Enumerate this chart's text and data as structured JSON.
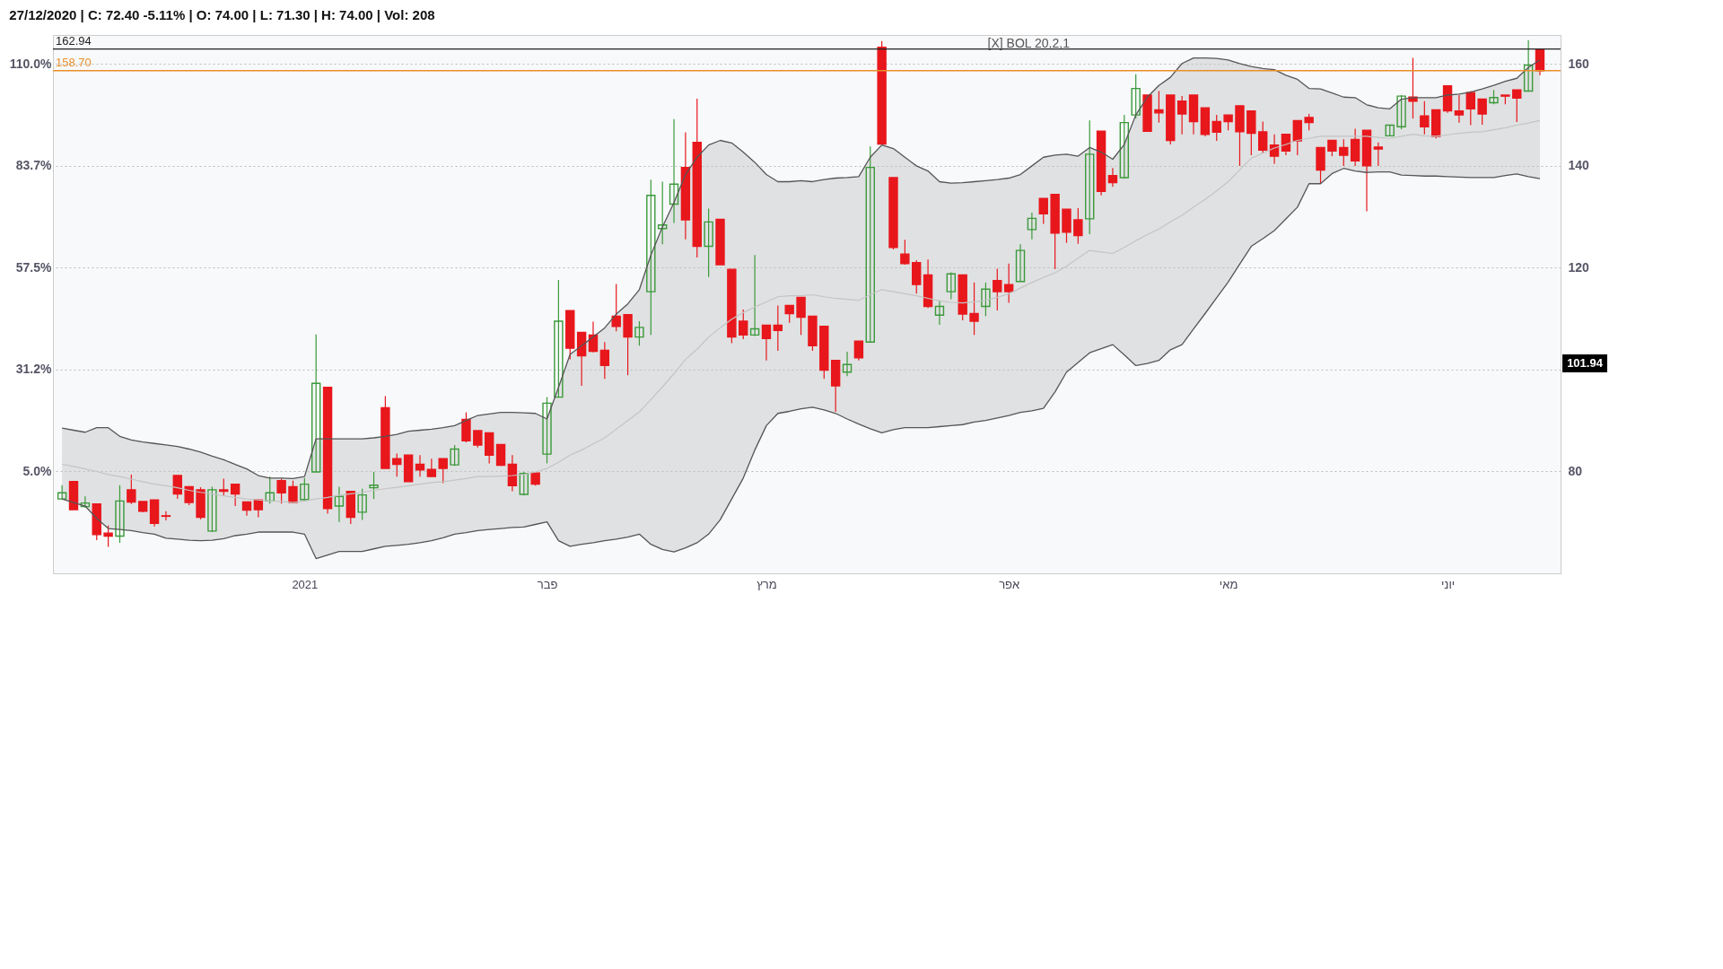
{
  "chart_data": {
    "type": "candlestick",
    "subtitle": "27/12/2020 | C: 72.40 -5.11% | O: 74.00 | L: 71.30 | H: 74.00 | Vol: 208",
    "categories": [
      null,
      null,
      null,
      null,
      null,
      null,
      null,
      null,
      null,
      null,
      null,
      null,
      null,
      null,
      null,
      null,
      null,
      null,
      null,
      null,
      null,
      "2021",
      null,
      null,
      null,
      null,
      null,
      null,
      null,
      null,
      null,
      null,
      null,
      null,
      null,
      null,
      null,
      null,
      null,
      null,
      null,
      null,
      "פבר",
      null,
      null,
      null,
      null,
      null,
      null,
      null,
      null,
      null,
      null,
      null,
      null,
      null,
      null,
      null,
      null,
      null,
      null,
      "מרץ",
      null,
      null,
      null,
      null,
      null,
      null,
      null,
      null,
      null,
      null,
      null,
      null,
      null,
      null,
      null,
      null,
      null,
      null,
      null,
      null,
      "אפר",
      null,
      null,
      null,
      null,
      null,
      null,
      null,
      null,
      null,
      null,
      null,
      null,
      null,
      null,
      null,
      null,
      null,
      null,
      "מאי",
      null,
      null,
      null,
      null,
      null,
      null,
      null,
      null,
      null,
      null,
      null,
      null,
      null,
      null,
      null,
      null,
      null,
      null,
      "יוני",
      null,
      null,
      null,
      null,
      null,
      null,
      null,
      null
    ],
    "ylim": [
      60,
      165.7
    ],
    "yticks": [
      80,
      {
        "value": 100,
        "label": null
      },
      120,
      140,
      160
    ],
    "y2lim": [
      -21.25,
      117.48
    ],
    "y2ticks": [
      {
        "value": 5,
        "label": "5.0%"
      },
      {
        "value": 31.25,
        "label": "31.2%"
      },
      {
        "value": 57.5,
        "label": "57.5%"
      },
      {
        "value": 83.75,
        "label": "83.7%"
      },
      {
        "value": 110,
        "label": "110.0%"
      }
    ],
    "grid": "y",
    "legend": "top",
    "series": [
      {
        "ohlc": [
          [
            74.6,
            77.3,
            74.6,
            75.8
          ],
          [
            78.0,
            78.0,
            72.5,
            72.5
          ],
          [
            73.1,
            75.1,
            72.9,
            73.8
          ],
          [
            73.6,
            73.6,
            66.5,
            67.6
          ],
          [
            67.9,
            69.4,
            65.2,
            67.3
          ],
          [
            67.3,
            77.3,
            66.0,
            74.2
          ],
          [
            76.4,
            79.4,
            73.6,
            74.0
          ],
          [
            74.1,
            74.1,
            72.0,
            72.2
          ],
          [
            74.4,
            74.4,
            69.2,
            69.8
          ],
          [
            71.3,
            72.2,
            70.4,
            71.2
          ],
          [
            79.2,
            79.2,
            74.6,
            75.6
          ],
          [
            77.0,
            77.0,
            73.4,
            73.9
          ],
          [
            76.4,
            76.9,
            70.6,
            71.0
          ],
          [
            68.3,
            77.0,
            68.1,
            76.4
          ],
          [
            76.4,
            78.6,
            75.3,
            76.1
          ],
          [
            77.5,
            77.5,
            73.2,
            75.6
          ],
          [
            74.0,
            74.0,
            71.3,
            72.4
          ],
          [
            74.4,
            74.4,
            71.0,
            72.5
          ],
          [
            74.2,
            79.0,
            73.7,
            75.8
          ],
          [
            78.2,
            78.6,
            73.7,
            75.8
          ],
          [
            77.0,
            78.2,
            73.7,
            73.9
          ],
          [
            74.5,
            78.7,
            74.3,
            77.5
          ],
          [
            79.9,
            106.9,
            79.9,
            97.3
          ],
          [
            96.5,
            96.5,
            71.7,
            72.7
          ],
          [
            73.2,
            77.0,
            70.1,
            75.1
          ],
          [
            76.1,
            76.1,
            69.7,
            71.0
          ],
          [
            72.0,
            76.6,
            70.5,
            75.4
          ],
          [
            76.8,
            79.9,
            74.6,
            77.3
          ],
          [
            92.5,
            94.8,
            80.6,
            80.6
          ],
          [
            82.5,
            83.5,
            79.0,
            81.4
          ],
          [
            83.2,
            83.2,
            78.0,
            78.0
          ],
          [
            81.4,
            83.2,
            79.0,
            80.3
          ],
          [
            80.4,
            82.5,
            79.0,
            79.0
          ],
          [
            82.5,
            82.5,
            77.7,
            80.6
          ],
          [
            81.3,
            85.2,
            81.1,
            84.4
          ],
          [
            90.2,
            91.6,
            85.7,
            86.0
          ],
          [
            88.0,
            88.0,
            84.7,
            85.2
          ],
          [
            87.6,
            87.6,
            81.6,
            83.2
          ],
          [
            85.3,
            85.3,
            81.1,
            81.2
          ],
          [
            81.4,
            83.2,
            76.1,
            77.2
          ],
          [
            75.5,
            79.9,
            75.3,
            79.6
          ],
          [
            79.7,
            79.7,
            77.2,
            77.5
          ],
          [
            83.4,
            94.6,
            81.6,
            93.4
          ],
          [
            94.6,
            117.6,
            94.6,
            109.5
          ],
          [
            111.6,
            111.6,
            102.0,
            104.2
          ],
          [
            107.3,
            107.3,
            96.8,
            102.7
          ],
          [
            106.8,
            109.4,
            103.4,
            103.6
          ],
          [
            103.8,
            105.4,
            98.2,
            100.8
          ],
          [
            110.5,
            116.8,
            107.5,
            108.5
          ],
          [
            110.8,
            110.8,
            98.9,
            106.4
          ],
          [
            106.4,
            109.5,
            104.7,
            108.3
          ],
          [
            115.3,
            137.3,
            106.8,
            134.2
          ],
          [
            127.7,
            136.9,
            124.6,
            128.4
          ],
          [
            132.5,
            149.2,
            128.8,
            136.4
          ],
          [
            139.7,
            146.6,
            125.6,
            129.4
          ],
          [
            144.6,
            153.2,
            122.0,
            124.2
          ],
          [
            124.2,
            131.6,
            118.2,
            129.0
          ],
          [
            129.5,
            129.5,
            120.6,
            120.6
          ],
          [
            119.7,
            119.7,
            105.2,
            106.4
          ],
          [
            109.5,
            111.8,
            106.0,
            106.8
          ],
          [
            106.8,
            122.5,
            106.6,
            108.0
          ],
          [
            108.7,
            108.7,
            101.8,
            106.1
          ],
          [
            108.7,
            112.6,
            103.7,
            107.7
          ],
          [
            112.6,
            112.6,
            109.2,
            111.0
          ],
          [
            114.2,
            114.2,
            106.8,
            110.3
          ],
          [
            110.5,
            110.5,
            103.7,
            104.7
          ],
          [
            108.5,
            108.5,
            98.2,
            99.9
          ],
          [
            101.8,
            101.8,
            91.7,
            96.8
          ],
          [
            99.5,
            103.5,
            98.7,
            101.0
          ],
          [
            105.6,
            105.6,
            101.8,
            102.3
          ],
          [
            105.4,
            143.8,
            105.4,
            139.7
          ],
          [
            163.3,
            164.5,
            144.3,
            144.3
          ],
          [
            137.7,
            137.7,
            123.6,
            124.0
          ],
          [
            122.7,
            125.5,
            120.6,
            120.8
          ],
          [
            121.0,
            121.5,
            114.9,
            116.7
          ],
          [
            118.6,
            121.6,
            112.1,
            112.4
          ],
          [
            110.7,
            113.6,
            108.8,
            112.4
          ],
          [
            115.3,
            119.1,
            113.8,
            118.8
          ],
          [
            118.6,
            118.6,
            109.7,
            110.9
          ],
          [
            111.0,
            117.1,
            106.8,
            109.5
          ],
          [
            112.4,
            117.1,
            110.5,
            115.8
          ],
          [
            117.5,
            119.8,
            111.6,
            115.3
          ],
          [
            116.7,
            120.8,
            113.1,
            115.3
          ],
          [
            117.3,
            124.6,
            117.3,
            123.4
          ],
          [
            127.5,
            130.8,
            125.6,
            129.7
          ],
          [
            133.6,
            133.6,
            128.6,
            130.6
          ],
          [
            134.4,
            134.4,
            119.7,
            126.8
          ],
          [
            131.5,
            131.5,
            124.9,
            127.0
          ],
          [
            129.4,
            131.7,
            124.7,
            126.3
          ],
          [
            129.6,
            148.9,
            126.6,
            142.3
          ],
          [
            146.8,
            146.8,
            134.2,
            135.0
          ],
          [
            138.1,
            139.6,
            135.9,
            136.7
          ],
          [
            137.7,
            150.0,
            137.5,
            148.5
          ],
          [
            150.0,
            158.0,
            149.3,
            155.2
          ],
          [
            153.9,
            153.9,
            146.8,
            146.8
          ],
          [
            151.0,
            154.7,
            148.5,
            150.4
          ],
          [
            153.9,
            153.9,
            144.2,
            145.0
          ],
          [
            152.7,
            153.7,
            146.2,
            150.2
          ],
          [
            153.9,
            153.9,
            146.2,
            148.7
          ],
          [
            151.4,
            151.4,
            145.8,
            146.2
          ],
          [
            148.7,
            150.0,
            144.9,
            146.6
          ],
          [
            150.0,
            150.0,
            147.0,
            148.7
          ],
          [
            151.8,
            151.8,
            140.0,
            146.7
          ],
          [
            150.8,
            150.8,
            142.1,
            146.4
          ],
          [
            146.7,
            148.7,
            142.5,
            143.1
          ],
          [
            144.1,
            146.2,
            140.4,
            141.9
          ],
          [
            146.2,
            146.2,
            142.1,
            142.9
          ],
          [
            148.9,
            148.9,
            142.1,
            144.9
          ],
          [
            149.5,
            150.2,
            147.0,
            148.5
          ],
          [
            143.6,
            143.6,
            136.5,
            139.2
          ],
          [
            145.0,
            145.0,
            141.9,
            142.9
          ],
          [
            143.6,
            145.2,
            140.0,
            142.1
          ],
          [
            145.2,
            147.3,
            140.0,
            141.0
          ],
          [
            147.0,
            147.0,
            131.1,
            140.0
          ],
          [
            143.7,
            144.6,
            140.0,
            143.3
          ],
          [
            145.9,
            148.1,
            145.8,
            148.0
          ],
          [
            147.7,
            153.9,
            147.2,
            153.7
          ],
          [
            153.5,
            161.2,
            149.3,
            152.7
          ],
          [
            149.8,
            152.7,
            146.2,
            147.7
          ],
          [
            151.0,
            151.0,
            145.4,
            145.8
          ],
          [
            155.7,
            155.7,
            150.4,
            150.8
          ],
          [
            150.8,
            153.9,
            148.5,
            150.0
          ],
          [
            154.4,
            154.7,
            148.0,
            151.2
          ],
          [
            153.1,
            153.1,
            148.1,
            150.2
          ],
          [
            152.4,
            154.9,
            152.1,
            153.4
          ],
          [
            153.9,
            153.9,
            152.1,
            153.7
          ],
          [
            154.9,
            154.9,
            148.6,
            153.3
          ],
          [
            154.7,
            164.7,
            154.7,
            159.8
          ],
          [
            162.94,
            162.94,
            157.8,
            158.7
          ]
        ],
        "colors": [
          "#3a9a3a",
          "#e8171c",
          "#3a9a3a",
          "#e8171c",
          "#e8171c",
          "#3a9a3a",
          "#e8171c",
          "#e8171c",
          "#e8171c",
          "#e8171c",
          "#e8171c",
          "#e8171c",
          "#e8171c",
          "#3a9a3a",
          "#e8171c",
          "#e8171c",
          "#e8171c",
          "#e8171c",
          "#3a9a3a",
          "#e8171c",
          "#e8171c",
          "#3a9a3a",
          "#3a9a3a",
          "#e8171c",
          "#3a9a3a",
          "#e8171c",
          "#3a9a3a",
          "#3a9a3a",
          "#e8171c",
          "#e8171c",
          "#e8171c",
          "#e8171c",
          "#e8171c",
          "#e8171c",
          "#3a9a3a",
          "#e8171c",
          "#e8171c",
          "#e8171c",
          "#e8171c",
          "#e8171c",
          "#3a9a3a",
          "#e8171c",
          "#3a9a3a",
          "#3a9a3a",
          "#e8171c",
          "#e8171c",
          "#e8171c",
          "#e8171c",
          "#e8171c",
          "#e8171c",
          "#3a9a3a",
          "#3a9a3a",
          "#3a9a3a",
          "#3a9a3a",
          "#e8171c",
          "#e8171c",
          "#3a9a3a",
          "#e8171c",
          "#e8171c",
          "#e8171c",
          "#3a9a3a",
          "#e8171c",
          "#e8171c",
          "#e8171c",
          "#e8171c",
          "#e8171c",
          "#e8171c",
          "#e8171c",
          "#3a9a3a",
          "#e8171c",
          "#3a9a3a",
          "#e8171c",
          "#e8171c",
          "#e8171c",
          "#e8171c",
          "#e8171c",
          "#3a9a3a",
          "#3a9a3a",
          "#e8171c",
          "#e8171c",
          "#3a9a3a",
          "#e8171c",
          "#e8171c",
          "#3a9a3a",
          "#3a9a3a",
          "#e8171c",
          "#e8171c",
          "#e8171c",
          "#e8171c",
          "#3a9a3a",
          "#e8171c",
          "#e8171c",
          "#3a9a3a",
          "#3a9a3a",
          "#e8171c",
          "#e8171c",
          "#e8171c",
          "#e8171c",
          "#e8171c",
          "#e8171c",
          "#e8171c",
          "#e8171c",
          "#e8171c",
          "#e8171c",
          "#e8171c",
          "#e8171c",
          "#e8171c",
          "#e8171c",
          "#e8171c",
          "#e8171c",
          "#e8171c",
          "#e8171c",
          "#e8171c",
          "#e8171c",
          "#e8171c",
          "#3a9a3a",
          "#3a9a3a",
          "#e8171c",
          "#e8171c",
          "#e8171c",
          "#e8171c",
          "#e8171c",
          "#e8171c",
          "#e8171c",
          "#3a9a3a",
          "#e8171c",
          "#e8171c",
          "#3a9a3a",
          "#e8171c"
        ]
      },
      {
        "type": "line",
        "name": "[X] BOL 20,2,1",
        "color": "#555555",
        "values": [
          88.5,
          88.1,
          87.7,
          88.6,
          88.6,
          86.9,
          86.2,
          85.8,
          85.5,
          85.2,
          84.9,
          84.4,
          83.8,
          83.0,
          82.3,
          81.4,
          80.5,
          79.2,
          78.7,
          78.7,
          78.6,
          79.0,
          86.4,
          86.4,
          86.4,
          86.4,
          86.4,
          86.6,
          86.9,
          87.3,
          87.9,
          88.1,
          88.3,
          88.6,
          89.0,
          90.0,
          91.0,
          91.3,
          91.6,
          91.6,
          91.5,
          91.4,
          90.3,
          96.5,
          103.0,
          104.7,
          106.4,
          108.2,
          110.9,
          112.9,
          115.7,
          122.5,
          128.0,
          132.8,
          138.3,
          141.7,
          144.1,
          145.0,
          144.5,
          142.7,
          140.7,
          138.3,
          136.9,
          136.9,
          137.1,
          136.9,
          137.3,
          137.6,
          137.7,
          137.9,
          141.7,
          144.1,
          143.4,
          141.7,
          140.0,
          139.0,
          136.9,
          136.6,
          136.7,
          136.9,
          137.1,
          137.3,
          137.6,
          138.3,
          140.0,
          141.7,
          142.1,
          142.3,
          141.9,
          143.6,
          142.7,
          141.3,
          144.2,
          150.0,
          153.5,
          155.8,
          157.4,
          160.1,
          161.2,
          161.2,
          161.1,
          160.8,
          160.1,
          159.5,
          159.1,
          158.9,
          157.8,
          157.0,
          155.2,
          155.1,
          154.3,
          153.5,
          153.4,
          152.0,
          151.4,
          151.2,
          153.1,
          153.4,
          153.4,
          153.4,
          153.9,
          154.1,
          154.5,
          155.1,
          155.8,
          156.6,
          157.2,
          159.3,
          160.8
        ]
      },
      {
        "type": "line",
        "color": "#555555",
        "values": [
          74.6,
          73.9,
          73.2,
          70.8,
          68.8,
          68.6,
          68.4,
          68.0,
          67.7,
          66.9,
          66.7,
          66.5,
          66.4,
          66.5,
          66.8,
          67.4,
          67.7,
          68.1,
          68.1,
          68.1,
          68.1,
          67.7,
          62.9,
          63.6,
          64.3,
          64.3,
          64.3,
          64.8,
          65.3,
          65.5,
          65.7,
          66.0,
          66.4,
          67.0,
          67.7,
          68.0,
          68.4,
          68.6,
          68.8,
          69.0,
          69.1,
          69.6,
          70.1,
          66.4,
          65.3,
          65.7,
          66.0,
          66.4,
          66.7,
          67.1,
          67.7,
          65.7,
          64.7,
          64.2,
          65.0,
          66.0,
          67.7,
          70.5,
          74.6,
          78.7,
          84.2,
          89.0,
          91.4,
          91.8,
          92.3,
          92.6,
          92.1,
          91.4,
          90.3,
          89.3,
          88.4,
          87.6,
          88.2,
          88.6,
          88.6,
          88.6,
          88.8,
          89.0,
          89.2,
          89.7,
          90.0,
          90.5,
          91.0,
          91.6,
          91.9,
          92.4,
          95.6,
          99.5,
          101.4,
          103.3,
          104.1,
          104.9,
          102.9,
          100.8,
          101.2,
          101.8,
          103.9,
          104.9,
          108.0,
          111.0,
          114.1,
          117.2,
          120.7,
          124.2,
          125.7,
          127.3,
          129.6,
          131.9,
          136.5,
          136.5,
          138.5,
          139.5,
          139.0,
          138.7,
          138.8,
          138.8,
          138.2,
          138.1,
          138.0,
          138.0,
          137.9,
          137.8,
          137.7,
          137.7,
          137.7,
          138.1,
          138.4,
          137.9,
          137.5
        ]
      },
      {
        "type": "line",
        "color": "#c4c4c4",
        "values": [
          81.4,
          81.0,
          80.5,
          80.0,
          79.4,
          79.0,
          78.5,
          78.0,
          77.5,
          77.2,
          76.8,
          76.3,
          75.9,
          75.6,
          75.2,
          74.9,
          74.6,
          74.4,
          74.2,
          74.1,
          73.9,
          74.2,
          74.6,
          74.9,
          75.3,
          75.6,
          75.9,
          76.3,
          76.6,
          76.9,
          77.2,
          77.5,
          77.8,
          78.0,
          78.3,
          78.6,
          79.0,
          79.0,
          79.1,
          79.2,
          79.4,
          79.9,
          80.6,
          81.8,
          83.2,
          84.2,
          85.4,
          86.6,
          88.3,
          90.0,
          91.7,
          94.1,
          96.6,
          99.2,
          102.0,
          104.0,
          106.4,
          108.2,
          109.9,
          111.2,
          112.3,
          113.3,
          114.3,
          114.5,
          114.5,
          114.7,
          114.3,
          114.0,
          113.8,
          113.6,
          114.7,
          115.7,
          115.3,
          114.9,
          114.5,
          114.0,
          113.5,
          113.2,
          113.1,
          113.3,
          113.6,
          114.2,
          114.9,
          116.0,
          117.1,
          118.1,
          119.0,
          120.3,
          121.9,
          123.4,
          123.1,
          122.8,
          124.0,
          125.3,
          126.5,
          127.6,
          129.0,
          130.3,
          131.9,
          133.4,
          135.1,
          136.9,
          139.2,
          141.5,
          142.5,
          143.5,
          144.2,
          145.0,
          145.4,
          145.8,
          145.8,
          145.8,
          145.8,
          145.8,
          145.6,
          145.4,
          145.8,
          146.2,
          145.9,
          145.8,
          146.1,
          146.4,
          146.6,
          146.7,
          147.1,
          147.5,
          148.0,
          148.4,
          148.9
        ],
        "upper": [
          88.5,
          88.1,
          87.7,
          88.6,
          88.6,
          86.9,
          86.2,
          85.8,
          85.5,
          85.2,
          84.9,
          84.4,
          83.8,
          83.0,
          82.3,
          81.4,
          80.5,
          79.2,
          78.7,
          78.7,
          78.6,
          79.0,
          86.4,
          86.4,
          86.4,
          86.4,
          86.4,
          86.6,
          86.9,
          87.3,
          87.9,
          88.1,
          88.3,
          88.6,
          89.0,
          90.0,
          91.0,
          91.3,
          91.6,
          91.6,
          91.5,
          91.4,
          90.3,
          96.5,
          103.0,
          104.7,
          106.4,
          108.2,
          110.9,
          112.9,
          115.7,
          122.5,
          128.0,
          132.8,
          138.3,
          141.7,
          144.1,
          145.0,
          144.5,
          142.7,
          140.7,
          138.3,
          136.9,
          136.9,
          137.1,
          136.9,
          137.3,
          137.6,
          137.7,
          137.9,
          141.7,
          144.1,
          143.4,
          141.7,
          140.0,
          139.0,
          136.9,
          136.6,
          136.7,
          136.9,
          137.1,
          137.3,
          137.6,
          138.3,
          140.0,
          141.7,
          142.1,
          142.3,
          141.9,
          143.6,
          142.7,
          141.3,
          144.2,
          150.0,
          153.5,
          155.8,
          157.4,
          160.1,
          161.2,
          161.2,
          161.1,
          160.8,
          160.1,
          159.5,
          159.1,
          158.9,
          157.8,
          157.0,
          155.2,
          155.1,
          154.3,
          153.5,
          153.4,
          152.0,
          151.4,
          151.2,
          153.1,
          153.4,
          153.4,
          153.4,
          153.9,
          154.1,
          154.5,
          155.1,
          155.8,
          156.6,
          157.2,
          159.3,
          160.8
        ],
        "lower": [
          74.6,
          73.9,
          73.2,
          70.8,
          68.8,
          68.6,
          68.4,
          68.0,
          67.7,
          66.9,
          66.7,
          66.5,
          66.4,
          66.5,
          66.8,
          67.4,
          67.7,
          68.1,
          68.1,
          68.1,
          68.1,
          67.7,
          62.9,
          63.6,
          64.3,
          64.3,
          64.3,
          64.8,
          65.3,
          65.5,
          65.7,
          66.0,
          66.4,
          67.0,
          67.7,
          68.0,
          68.4,
          68.6,
          68.8,
          69.0,
          69.1,
          69.6,
          70.1,
          66.4,
          65.3,
          65.7,
          66.0,
          66.4,
          66.7,
          67.1,
          67.7,
          65.7,
          64.7,
          64.2,
          65.0,
          66.0,
          67.7,
          70.5,
          74.6,
          78.7,
          84.2,
          89.0,
          91.4,
          91.8,
          92.3,
          92.6,
          92.1,
          91.4,
          90.3,
          89.3,
          88.4,
          87.6,
          88.2,
          88.6,
          88.6,
          88.6,
          88.8,
          89.0,
          89.2,
          89.7,
          90.0,
          90.5,
          91.0,
          91.6,
          91.9,
          92.4,
          95.6,
          99.5,
          101.4,
          103.3,
          104.1,
          104.9,
          102.9,
          100.8,
          101.2,
          101.8,
          103.9,
          104.9,
          108.0,
          111.0,
          114.1,
          117.2,
          120.7,
          124.2,
          125.7,
          127.3,
          129.6,
          131.9,
          136.5,
          136.5,
          138.5,
          139.5,
          139.0,
          138.7,
          138.8,
          138.8,
          138.2,
          138.1,
          138.0,
          138.0,
          137.9,
          137.8,
          137.7,
          137.7,
          137.7,
          138.1,
          138.4,
          137.9,
          137.5
        ]
      }
    ],
    "ref_lines": [
      {
        "axis": "y",
        "value": 162.94,
        "label": "162.94",
        "color": "#222222"
      },
      {
        "axis": "y",
        "value": 158.7,
        "label": "158.70",
        "color": "#e8902a"
      }
    ],
    "annotations": [
      "101.94"
    ]
  }
}
